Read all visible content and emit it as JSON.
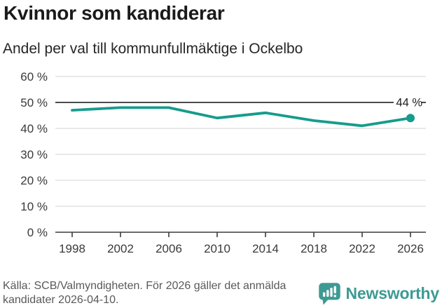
{
  "header": {
    "title": "Kvinnor som kandiderar",
    "subtitle": "Andel per val till kommunfullmäktige i Ockelbo"
  },
  "chart_data": {
    "type": "line",
    "title": "Kvinnor som kandiderar",
    "subtitle": "Andel per val till kommunfullmäktige i Ockelbo",
    "x": [
      1998,
      2002,
      2006,
      2010,
      2014,
      2018,
      2022,
      2026
    ],
    "series": [
      {
        "name": "Kvinnor som kandiderar",
        "values": [
          47,
          48,
          48,
          44,
          46,
          43,
          41,
          44
        ]
      }
    ],
    "xlabel": "",
    "ylabel": "",
    "ylim": [
      0,
      60
    ],
    "ytick_step": 10,
    "ytick_suffix": " %",
    "grid": true,
    "reference_line_value": 50,
    "end_label": "44 %",
    "legend": "none",
    "marker_last_point": true
  },
  "footer": {
    "source": "Källa: SCB/Valmyndigheten. För 2026 gäller det anmälda kandidater 2026-04-10.",
    "logo_text": "Newsworthy"
  },
  "colors": {
    "accent": "#179b8c",
    "brand": "#3d9a93"
  }
}
